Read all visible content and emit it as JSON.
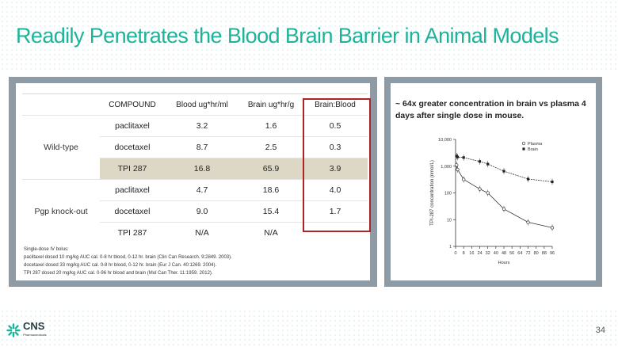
{
  "title": "Readily Penetrates the Blood Brain Barrier in Animal Models",
  "table": {
    "headers": [
      "COMPOUND",
      "Blood ug*hr/ml",
      "Brain ug*hr/g",
      "Brain:Blood"
    ],
    "groups": [
      {
        "name": "Wild-type",
        "rows": [
          {
            "compound": "paclitaxel",
            "blood": "3.2",
            "brain": "1.6",
            "ratio": "0.5"
          },
          {
            "compound": "docetaxel",
            "blood": "8.7",
            "brain": "2.5",
            "ratio": "0.3"
          },
          {
            "compound": "TPI 287",
            "blood": "16.8",
            "brain": "65.9",
            "ratio": "3.9"
          }
        ]
      },
      {
        "name": "Pgp knock-out",
        "rows": [
          {
            "compound": "paclitaxel",
            "blood": "4.7",
            "brain": "18.6",
            "ratio": "4.0"
          },
          {
            "compound": "docetaxel",
            "blood": "9.0",
            "brain": "15.4",
            "ratio": "1.7"
          },
          {
            "compound": "TPI 287",
            "blood": "N/A",
            "brain": "N/A",
            "ratio": ""
          }
        ]
      }
    ],
    "footnote": {
      "line0": "Single-dose IV bolus:",
      "line1": "paclitaxel dosed 10 mg/kg AUC cal. 0-8 hr blood, 0-12 hr. brain (Clin Can Research. 9:2849. 2003).",
      "line2": "docetaxel dosed 33 mg/kg AUC cal. 0-8 hr blood, 0-12 hr. brain (Eur J Can. 40:1269. 2004).",
      "line3": "TPI 287 dosed 20 mg/kg AUC cal. 0-96 hr blood and brain (Mol Can Ther. 11:1959. 2012)."
    }
  },
  "chart_caption": "~ 64x greater concentration in brain vs plasma 4 days after single dose in mouse.",
  "chart_data": {
    "type": "line",
    "title": "",
    "xlabel": "Hours",
    "ylabel": "TPI-287 concentration (nmol/L)",
    "yscale": "log",
    "ylim": [
      1,
      10000
    ],
    "xlim": [
      0,
      96
    ],
    "x_ticks": [
      "0",
      "8",
      "16",
      "24",
      "32",
      "40",
      "48",
      "56",
      "64",
      "72",
      "80",
      "88",
      "96"
    ],
    "y_ticks": [
      "1",
      "10",
      "100",
      "1,000",
      "10,000"
    ],
    "legend_position": "top-right",
    "series": [
      {
        "name": "Plasma",
        "marker": "open-circle",
        "x": [
          1,
          2,
          8,
          24,
          32,
          48,
          72,
          96
        ],
        "y": [
          1100,
          750,
          320,
          140,
          100,
          25,
          8,
          5
        ]
      },
      {
        "name": "Brain",
        "marker": "filled-square",
        "x": [
          1,
          2,
          8,
          24,
          32,
          48,
          72,
          96
        ],
        "y": [
          2400,
          2200,
          2100,
          1500,
          1200,
          650,
          330,
          260
        ]
      }
    ]
  },
  "logo": {
    "name": "CNS",
    "sub": "Pharmaceuticals"
  },
  "page_number": "34",
  "colors": {
    "title": "#1db39a",
    "highlight": "#ddd8c6",
    "ratio_box": "#b22222",
    "panel": "#8e9ba4"
  }
}
